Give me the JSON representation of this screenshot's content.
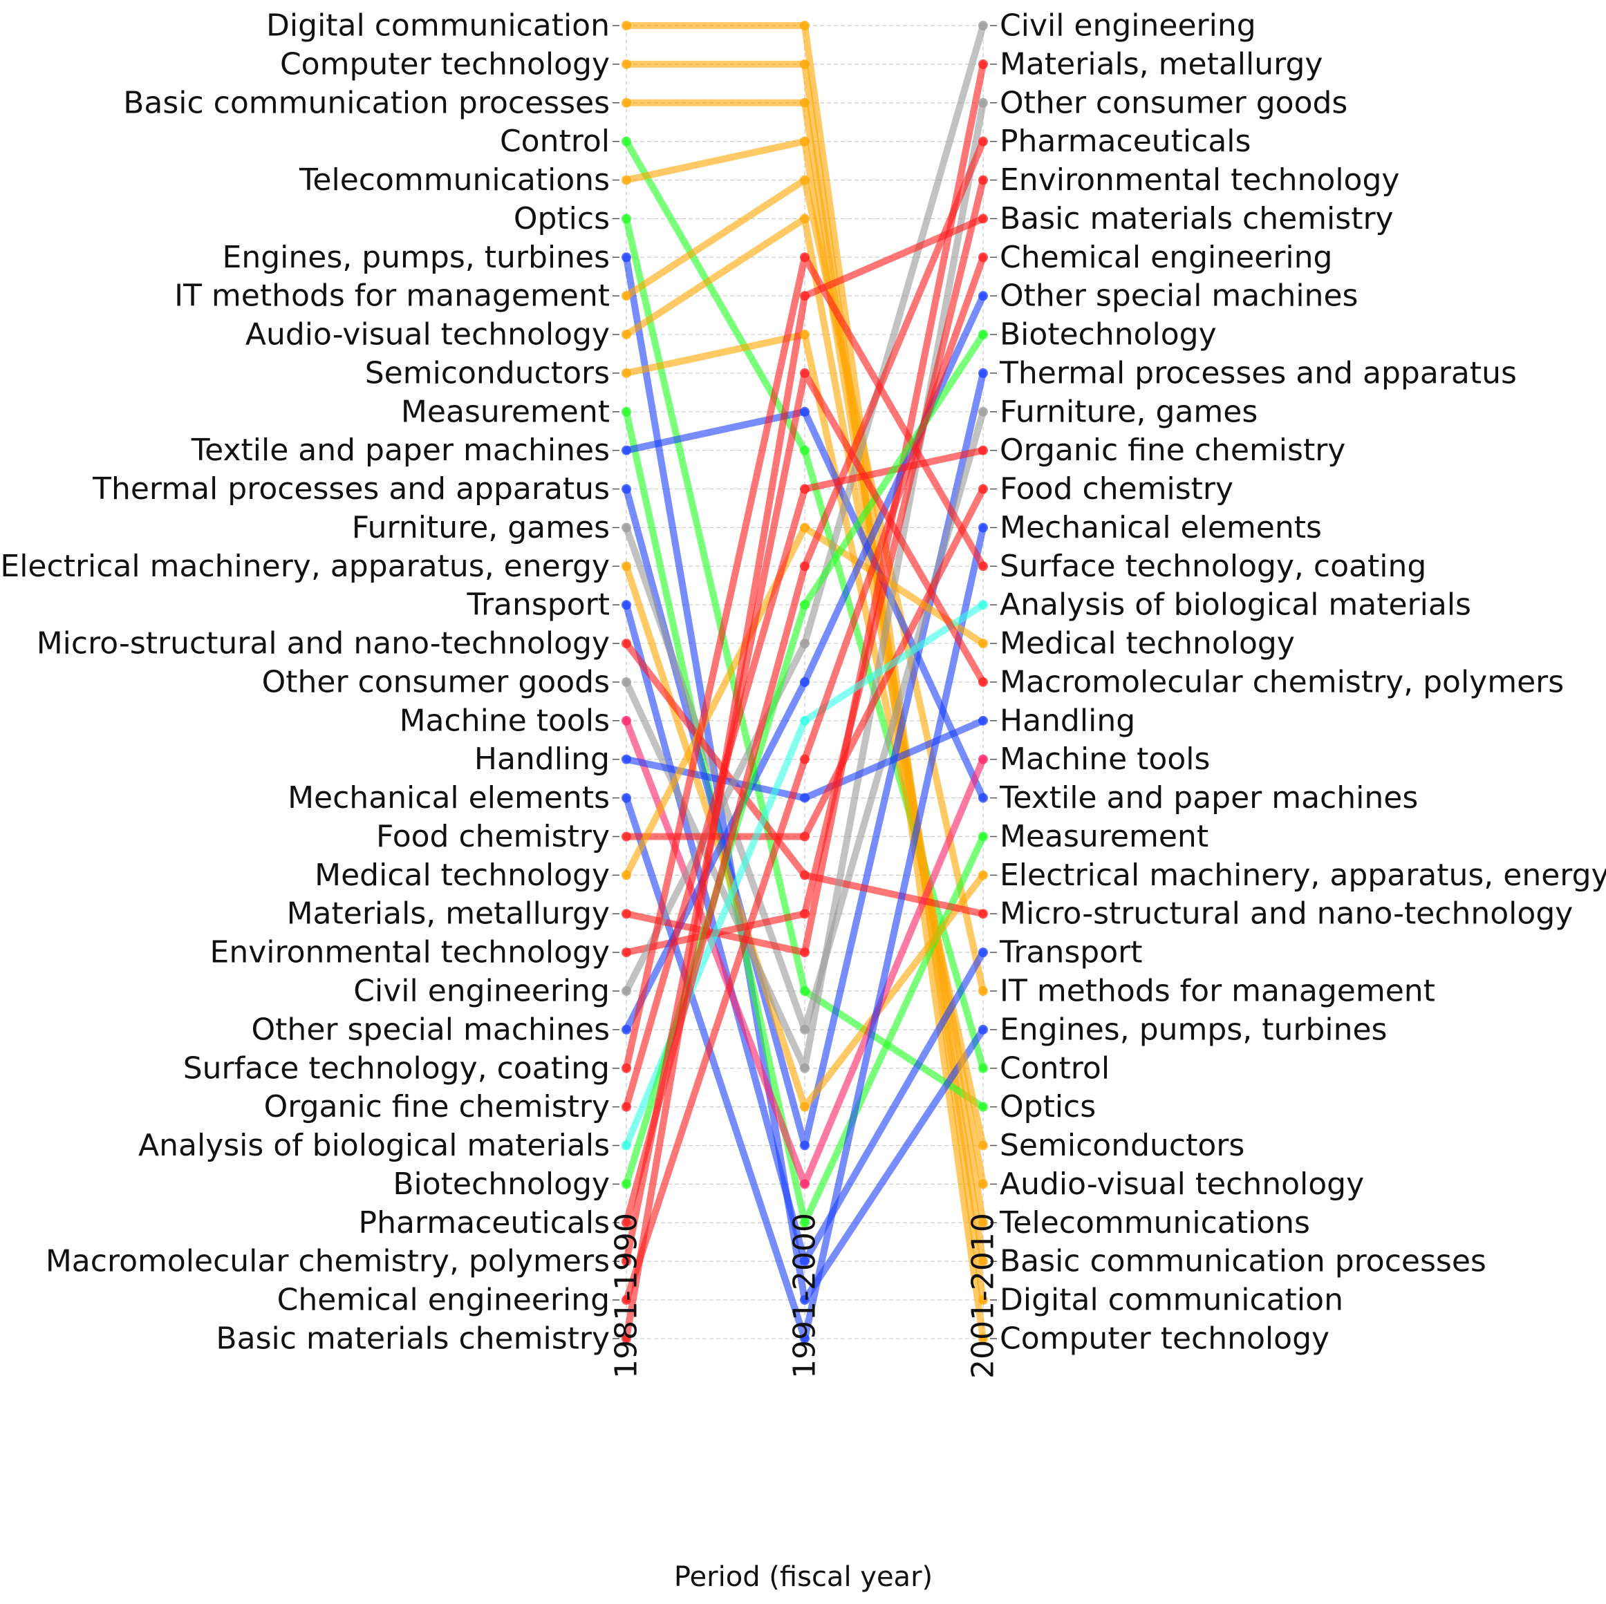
{
  "chart_data": {
    "type": "line",
    "subtype": "bump",
    "xlabel": "Period (fiscal year)",
    "ylabel": "",
    "periods": [
      "1981-1990",
      "1991-2000",
      "2001-2010"
    ],
    "grid": true,
    "rank_direction": "rank 1 at top",
    "group_colors": {
      "electrical": "#FFA500",
      "instruments": "#22FF22",
      "instruments_bio": "#33FFE6",
      "chemistry": "#FF1A1A",
      "machine_tools": "#FF2266",
      "mechanical": "#1A3FFF",
      "other": "#999999"
    },
    "series": [
      {
        "name": "Digital communication",
        "group": "electrical",
        "ranks": [
          1,
          1,
          34
        ]
      },
      {
        "name": "Computer technology",
        "group": "electrical",
        "ranks": [
          2,
          2,
          35
        ]
      },
      {
        "name": "Basic communication processes",
        "group": "electrical",
        "ranks": [
          3,
          3,
          33
        ]
      },
      {
        "name": "Control",
        "group": "instruments",
        "ranks": [
          4,
          12,
          28
        ]
      },
      {
        "name": "Telecommunications",
        "group": "electrical",
        "ranks": [
          5,
          4,
          32
        ]
      },
      {
        "name": "Optics",
        "group": "instruments",
        "ranks": [
          6,
          26,
          29
        ]
      },
      {
        "name": "Engines, pumps, turbines",
        "group": "mechanical",
        "ranks": [
          7,
          34,
          27
        ]
      },
      {
        "name": "IT methods for management",
        "group": "electrical",
        "ranks": [
          8,
          5,
          26
        ]
      },
      {
        "name": "Audio-visual technology",
        "group": "electrical",
        "ranks": [
          9,
          6,
          31
        ]
      },
      {
        "name": "Semiconductors",
        "group": "electrical",
        "ranks": [
          10,
          9,
          30
        ]
      },
      {
        "name": "Measurement",
        "group": "instruments",
        "ranks": [
          11,
          32,
          22
        ]
      },
      {
        "name": "Textile and paper machines",
        "group": "mechanical",
        "ranks": [
          12,
          11,
          21
        ]
      },
      {
        "name": "Thermal processes and apparatus",
        "group": "mechanical",
        "ranks": [
          13,
          30,
          10
        ]
      },
      {
        "name": "Furniture, games",
        "group": "other",
        "ranks": [
          14,
          27,
          11
        ]
      },
      {
        "name": "Electrical machinery, apparatus, energy",
        "group": "electrical",
        "ranks": [
          15,
          29,
          23
        ]
      },
      {
        "name": "Transport",
        "group": "mechanical",
        "ranks": [
          16,
          33,
          25
        ]
      },
      {
        "name": "Micro-structural and nano-technology",
        "group": "chemistry",
        "ranks": [
          17,
          23,
          24
        ]
      },
      {
        "name": "Other consumer goods",
        "group": "other",
        "ranks": [
          18,
          28,
          3
        ]
      },
      {
        "name": "Machine tools",
        "group": "machine_tools",
        "ranks": [
          19,
          31,
          20
        ]
      },
      {
        "name": "Handling",
        "group": "mechanical",
        "ranks": [
          20,
          21,
          19
        ]
      },
      {
        "name": "Mechanical elements",
        "group": "mechanical",
        "ranks": [
          21,
          35,
          14
        ]
      },
      {
        "name": "Food chemistry",
        "group": "chemistry",
        "ranks": [
          22,
          22,
          13
        ]
      },
      {
        "name": "Medical technology",
        "group": "electrical",
        "ranks": [
          23,
          14,
          17
        ]
      },
      {
        "name": "Materials, metallurgy",
        "group": "chemistry",
        "ranks": [
          24,
          25,
          2
        ]
      },
      {
        "name": "Environmental technology",
        "group": "chemistry",
        "ranks": [
          25,
          24,
          5
        ]
      },
      {
        "name": "Civil engineering",
        "group": "other",
        "ranks": [
          26,
          17,
          1
        ]
      },
      {
        "name": "Other special machines",
        "group": "mechanical",
        "ranks": [
          27,
          18,
          8
        ]
      },
      {
        "name": "Surface technology, coating",
        "group": "chemistry",
        "ranks": [
          28,
          7,
          15
        ]
      },
      {
        "name": "Organic fine chemistry",
        "group": "chemistry",
        "ranks": [
          29,
          13,
          12
        ]
      },
      {
        "name": "Analysis of biological materials",
        "group": "instruments_bio",
        "ranks": [
          30,
          19,
          16
        ]
      },
      {
        "name": "Biotechnology",
        "group": "instruments",
        "ranks": [
          31,
          16,
          9
        ]
      },
      {
        "name": "Pharmaceuticals",
        "group": "chemistry",
        "ranks": [
          32,
          15,
          4
        ]
      },
      {
        "name": "Macromolecular chemistry, polymers",
        "group": "chemistry",
        "ranks": [
          33,
          10,
          18
        ]
      },
      {
        "name": "Chemical engineering",
        "group": "chemistry",
        "ranks": [
          34,
          20,
          7
        ]
      },
      {
        "name": "Basic materials chemistry",
        "group": "chemistry",
        "ranks": [
          35,
          8,
          6
        ]
      }
    ]
  }
}
